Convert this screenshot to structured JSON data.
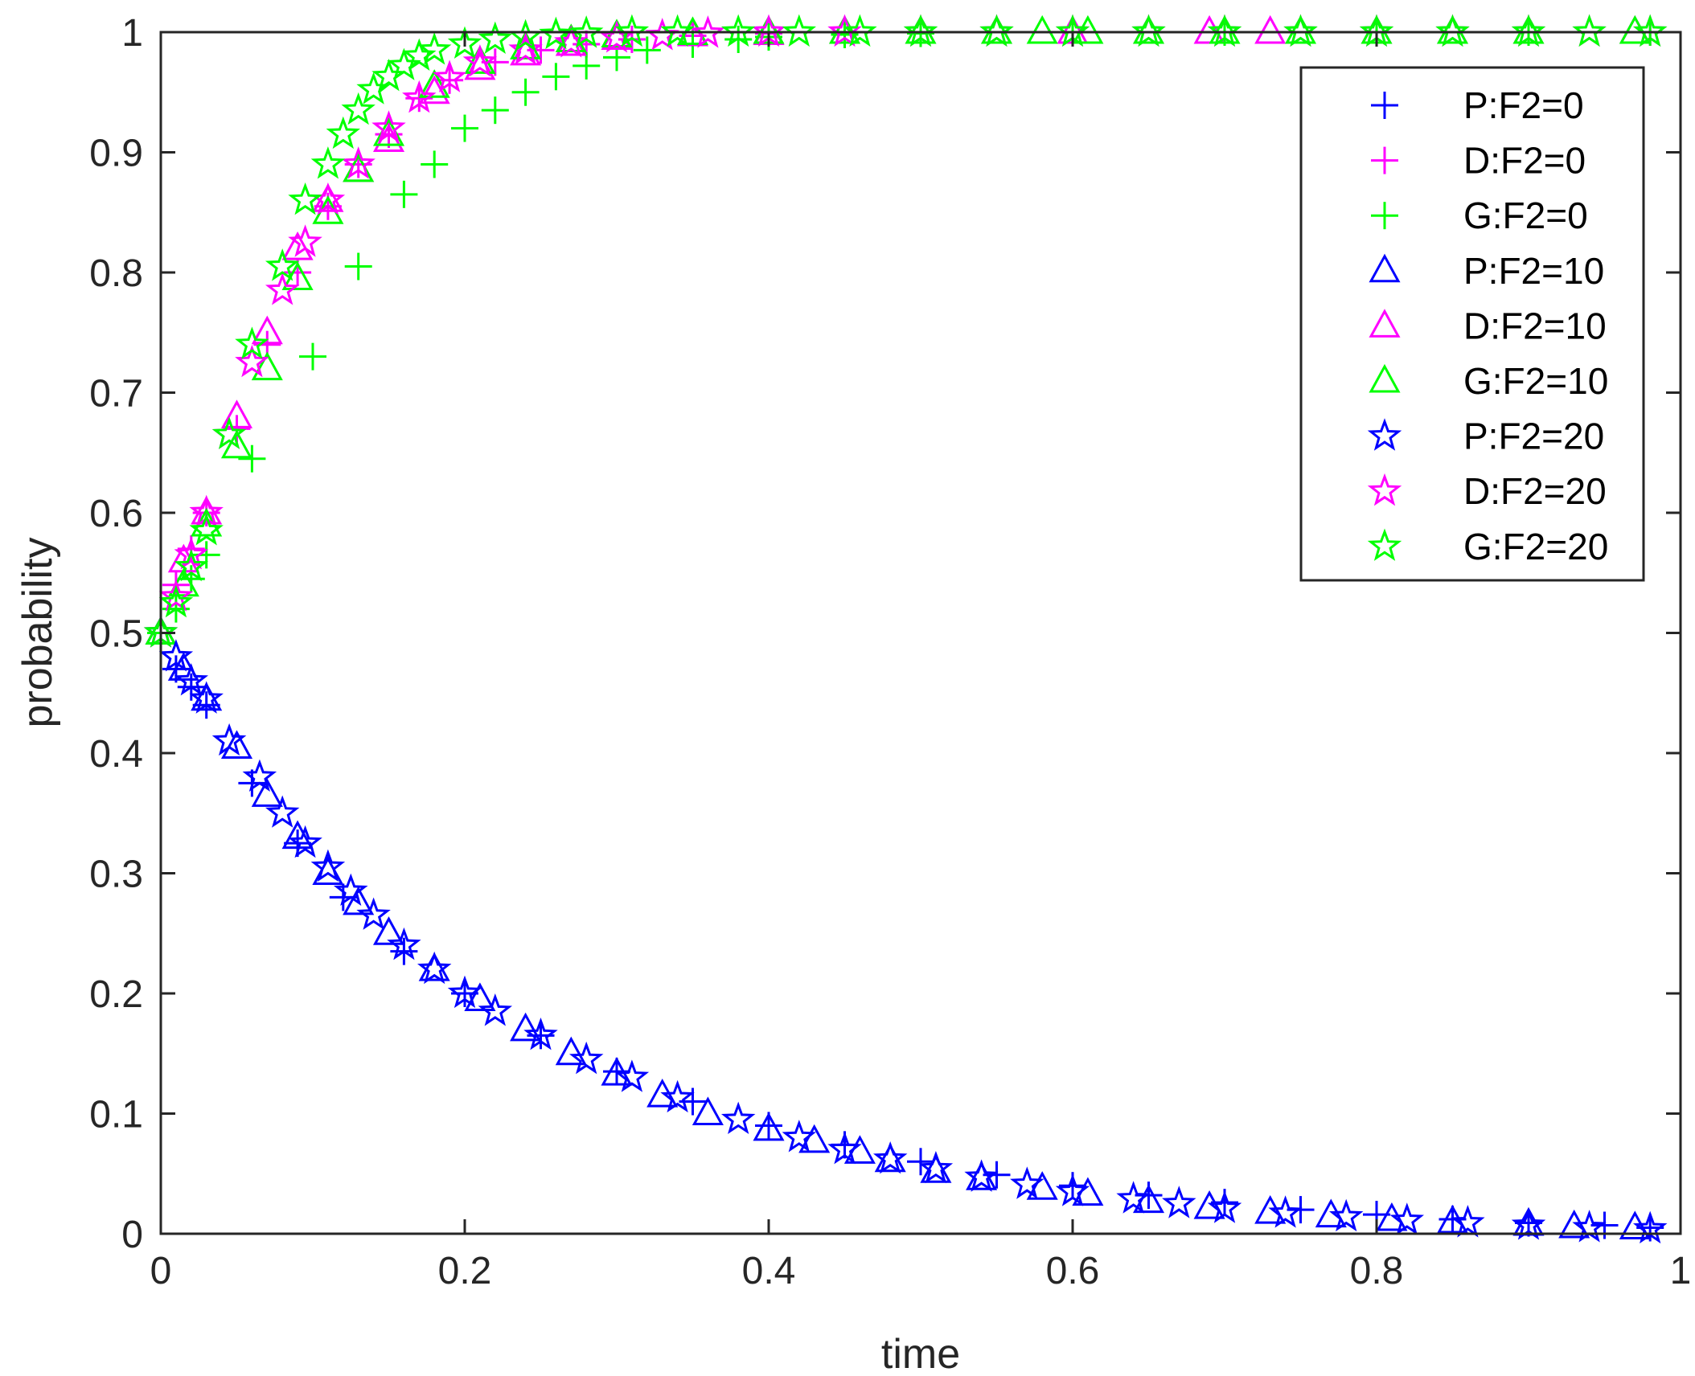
{
  "chart_data": {
    "type": "scatter",
    "title": "",
    "xlabel": "time",
    "ylabel": "probability",
    "xlim": [
      0,
      1
    ],
    "ylim": [
      0,
      1
    ],
    "x_ticks": [
      0,
      0.2,
      0.4,
      0.6,
      0.8,
      1
    ],
    "x_tick_labels": [
      "0",
      "0.2",
      "0.4",
      "0.6",
      "0.8",
      "1"
    ],
    "y_ticks": [
      0,
      0.1,
      0.2,
      0.3,
      0.4,
      0.5,
      0.6,
      0.7,
      0.8,
      0.9,
      1
    ],
    "y_tick_labels": [
      "0",
      "0.1",
      "0.2",
      "0.3",
      "0.4",
      "0.5",
      "0.6",
      "0.7",
      "0.8",
      "0.9",
      "1"
    ],
    "grid": false,
    "legend_position": "top-right",
    "series": [
      {
        "name": "P:F2=0",
        "marker": "plus",
        "color": "#0000FF",
        "x": [
          0.0,
          0.01,
          0.02,
          0.03,
          0.06,
          0.09,
          0.12,
          0.16,
          0.2,
          0.25,
          0.3,
          0.35,
          0.4,
          0.45,
          0.5,
          0.55,
          0.6,
          0.65,
          0.7,
          0.75,
          0.8,
          0.85,
          0.9,
          0.95,
          0.98
        ],
        "y": [
          0.5,
          0.47,
          0.455,
          0.44,
          0.375,
          0.325,
          0.28,
          0.235,
          0.2,
          0.165,
          0.135,
          0.11,
          0.09,
          0.074,
          0.06,
          0.049,
          0.04,
          0.032,
          0.026,
          0.02,
          0.016,
          0.012,
          0.009,
          0.007,
          0.005
        ]
      },
      {
        "name": "D:F2=0",
        "marker": "plus",
        "color": "#FF00FF",
        "x": [
          0.0,
          0.01,
          0.02,
          0.03,
          0.05,
          0.07,
          0.09,
          0.11,
          0.13,
          0.15,
          0.17,
          0.19,
          0.22,
          0.25,
          0.28,
          0.31,
          0.35,
          0.4,
          0.45,
          0.5,
          0.6,
          0.7,
          0.8,
          0.9,
          0.98
        ],
        "y": [
          0.5,
          0.54,
          0.57,
          0.6,
          0.67,
          0.74,
          0.8,
          0.855,
          0.89,
          0.915,
          0.945,
          0.96,
          0.975,
          0.985,
          0.99,
          0.994,
          0.997,
          0.999,
          1,
          1,
          1,
          1,
          1,
          1,
          1
        ]
      },
      {
        "name": "G:F2=0",
        "marker": "plus",
        "color": "#00FF00",
        "x": [
          0.0,
          0.01,
          0.02,
          0.03,
          0.06,
          0.1,
          0.13,
          0.16,
          0.18,
          0.2,
          0.22,
          0.24,
          0.26,
          0.28,
          0.3,
          0.32,
          0.35,
          0.38,
          0.4,
          0.45,
          0.5,
          0.6,
          0.7,
          0.8,
          0.9,
          0.98
        ],
        "y": [
          0.5,
          0.52,
          0.545,
          0.565,
          0.645,
          0.73,
          0.805,
          0.865,
          0.89,
          0.92,
          0.935,
          0.95,
          0.963,
          0.972,
          0.979,
          0.985,
          0.99,
          0.994,
          0.996,
          0.998,
          0.999,
          1,
          1,
          1,
          1,
          1
        ]
      },
      {
        "name": "P:F2=10",
        "marker": "triangle",
        "color": "#0000FF",
        "x": [
          0.0,
          0.015,
          0.03,
          0.05,
          0.07,
          0.09,
          0.11,
          0.13,
          0.15,
          0.18,
          0.21,
          0.24,
          0.27,
          0.3,
          0.33,
          0.36,
          0.4,
          0.43,
          0.46,
          0.48,
          0.51,
          0.54,
          0.58,
          0.61,
          0.65,
          0.69,
          0.73,
          0.77,
          0.81,
          0.85,
          0.9,
          0.93,
          0.97
        ],
        "y": [
          0.5,
          0.47,
          0.445,
          0.405,
          0.365,
          0.33,
          0.3,
          0.275,
          0.25,
          0.22,
          0.195,
          0.17,
          0.15,
          0.133,
          0.115,
          0.1,
          0.087,
          0.077,
          0.068,
          0.061,
          0.052,
          0.046,
          0.038,
          0.033,
          0.027,
          0.022,
          0.018,
          0.015,
          0.012,
          0.01,
          0.008,
          0.006,
          0.005
        ]
      },
      {
        "name": "D:F2=10",
        "marker": "triangle",
        "color": "#FF00FF",
        "x": [
          0.0,
          0.015,
          0.03,
          0.05,
          0.07,
          0.09,
          0.11,
          0.13,
          0.15,
          0.18,
          0.21,
          0.24,
          0.27,
          0.3,
          0.35,
          0.4,
          0.45,
          0.5,
          0.55,
          0.6,
          0.65,
          0.69,
          0.73,
          0.8,
          0.85,
          0.9,
          0.97
        ],
        "y": [
          0.5,
          0.56,
          0.6,
          0.68,
          0.75,
          0.82,
          0.86,
          0.885,
          0.91,
          0.95,
          0.97,
          0.982,
          0.99,
          0.995,
          0.998,
          0.999,
          1,
          1,
          1,
          1,
          1,
          1,
          1,
          1,
          1,
          1,
          1
        ]
      },
      {
        "name": "G:F2=10",
        "marker": "triangle",
        "color": "#00FF00",
        "x": [
          0.0,
          0.015,
          0.03,
          0.05,
          0.07,
          0.09,
          0.11,
          0.13,
          0.15,
          0.18,
          0.21,
          0.24,
          0.27,
          0.3,
          0.35,
          0.4,
          0.45,
          0.5,
          0.55,
          0.58,
          0.61,
          0.65,
          0.7,
          0.75,
          0.8,
          0.85,
          0.9,
          0.97
        ],
        "y": [
          0.5,
          0.54,
          0.59,
          0.655,
          0.72,
          0.795,
          0.85,
          0.885,
          0.915,
          0.955,
          0.975,
          0.987,
          0.993,
          0.997,
          0.999,
          1,
          1,
          1,
          1,
          1,
          1,
          1,
          1,
          1,
          1,
          1,
          1,
          1
        ]
      },
      {
        "name": "P:F2=20",
        "marker": "star",
        "color": "#0000FF",
        "x": [
          0.0,
          0.01,
          0.02,
          0.03,
          0.045,
          0.065,
          0.08,
          0.095,
          0.11,
          0.125,
          0.14,
          0.16,
          0.18,
          0.2,
          0.22,
          0.25,
          0.28,
          0.31,
          0.34,
          0.38,
          0.42,
          0.45,
          0.48,
          0.51,
          0.54,
          0.57,
          0.6,
          0.64,
          0.67,
          0.7,
          0.74,
          0.78,
          0.82,
          0.86,
          0.9,
          0.94,
          0.98
        ],
        "y": [
          0.5,
          0.48,
          0.46,
          0.445,
          0.41,
          0.38,
          0.35,
          0.325,
          0.305,
          0.285,
          0.265,
          0.24,
          0.22,
          0.2,
          0.185,
          0.165,
          0.145,
          0.13,
          0.113,
          0.095,
          0.08,
          0.07,
          0.062,
          0.054,
          0.047,
          0.041,
          0.035,
          0.029,
          0.025,
          0.021,
          0.017,
          0.014,
          0.011,
          0.009,
          0.007,
          0.005,
          0.004
        ]
      },
      {
        "name": "D:F2=20",
        "marker": "star",
        "color": "#FF00FF",
        "x": [
          0.0,
          0.01,
          0.02,
          0.03,
          0.045,
          0.06,
          0.08,
          0.095,
          0.11,
          0.13,
          0.15,
          0.17,
          0.19,
          0.21,
          0.24,
          0.27,
          0.3,
          0.33,
          0.36,
          0.4,
          0.45,
          0.5,
          0.55,
          0.6,
          0.65,
          0.7,
          0.75,
          0.8,
          0.85,
          0.9,
          0.94,
          0.98
        ],
        "y": [
          0.5,
          0.53,
          0.565,
          0.6,
          0.665,
          0.725,
          0.785,
          0.825,
          0.86,
          0.89,
          0.92,
          0.945,
          0.962,
          0.975,
          0.985,
          0.991,
          0.995,
          0.997,
          0.999,
          1,
          1,
          1,
          1,
          1,
          1,
          1,
          1,
          1,
          1,
          1,
          1,
          1
        ]
      },
      {
        "name": "G:F2=20",
        "marker": "star",
        "color": "#00FF00",
        "x": [
          0.0,
          0.01,
          0.02,
          0.03,
          0.045,
          0.06,
          0.08,
          0.095,
          0.11,
          0.12,
          0.13,
          0.14,
          0.15,
          0.16,
          0.17,
          0.18,
          0.2,
          0.22,
          0.24,
          0.26,
          0.28,
          0.31,
          0.34,
          0.38,
          0.42,
          0.46,
          0.5,
          0.55,
          0.6,
          0.65,
          0.7,
          0.75,
          0.8,
          0.85,
          0.9,
          0.94,
          0.98
        ],
        "y": [
          0.5,
          0.525,
          0.555,
          0.585,
          0.665,
          0.74,
          0.805,
          0.86,
          0.89,
          0.915,
          0.935,
          0.952,
          0.963,
          0.972,
          0.98,
          0.985,
          0.99,
          0.994,
          0.996,
          0.998,
          0.999,
          1,
          1,
          1,
          1,
          1,
          1,
          1,
          1,
          1,
          1,
          1,
          1,
          1,
          1,
          1,
          1
        ]
      }
    ]
  }
}
